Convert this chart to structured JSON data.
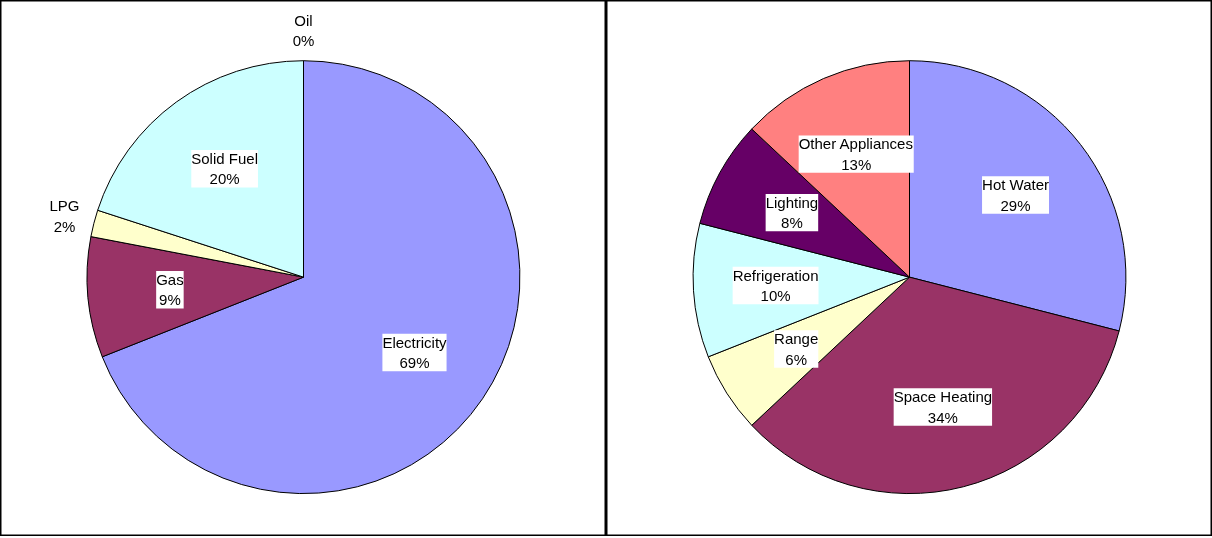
{
  "chart_data": [
    {
      "type": "pie",
      "categories": [
        "Oil",
        "Electricity",
        "Gas",
        "LPG",
        "Solid Fuel"
      ],
      "values": [
        0,
        69,
        9,
        2,
        20
      ],
      "colors": [
        "#ffffff",
        "#9999ff",
        "#993366",
        "#ffffcc",
        "#ccffff"
      ],
      "value_labels": [
        "0%",
        "69%",
        "9%",
        "2%",
        "20%"
      ]
    },
    {
      "type": "pie",
      "categories": [
        "Hot Water",
        "Space Heating",
        "Range",
        "Refrigeration",
        "Lighting",
        "Other Appliances"
      ],
      "values": [
        29,
        34,
        6,
        10,
        8,
        13
      ],
      "colors": [
        "#9999ff",
        "#993366",
        "#ffffcc",
        "#ccffff",
        "#660066",
        "#ff8080"
      ],
      "value_labels": [
        "29%",
        "34%",
        "6%",
        "10%",
        "8%",
        "13%"
      ]
    }
  ]
}
